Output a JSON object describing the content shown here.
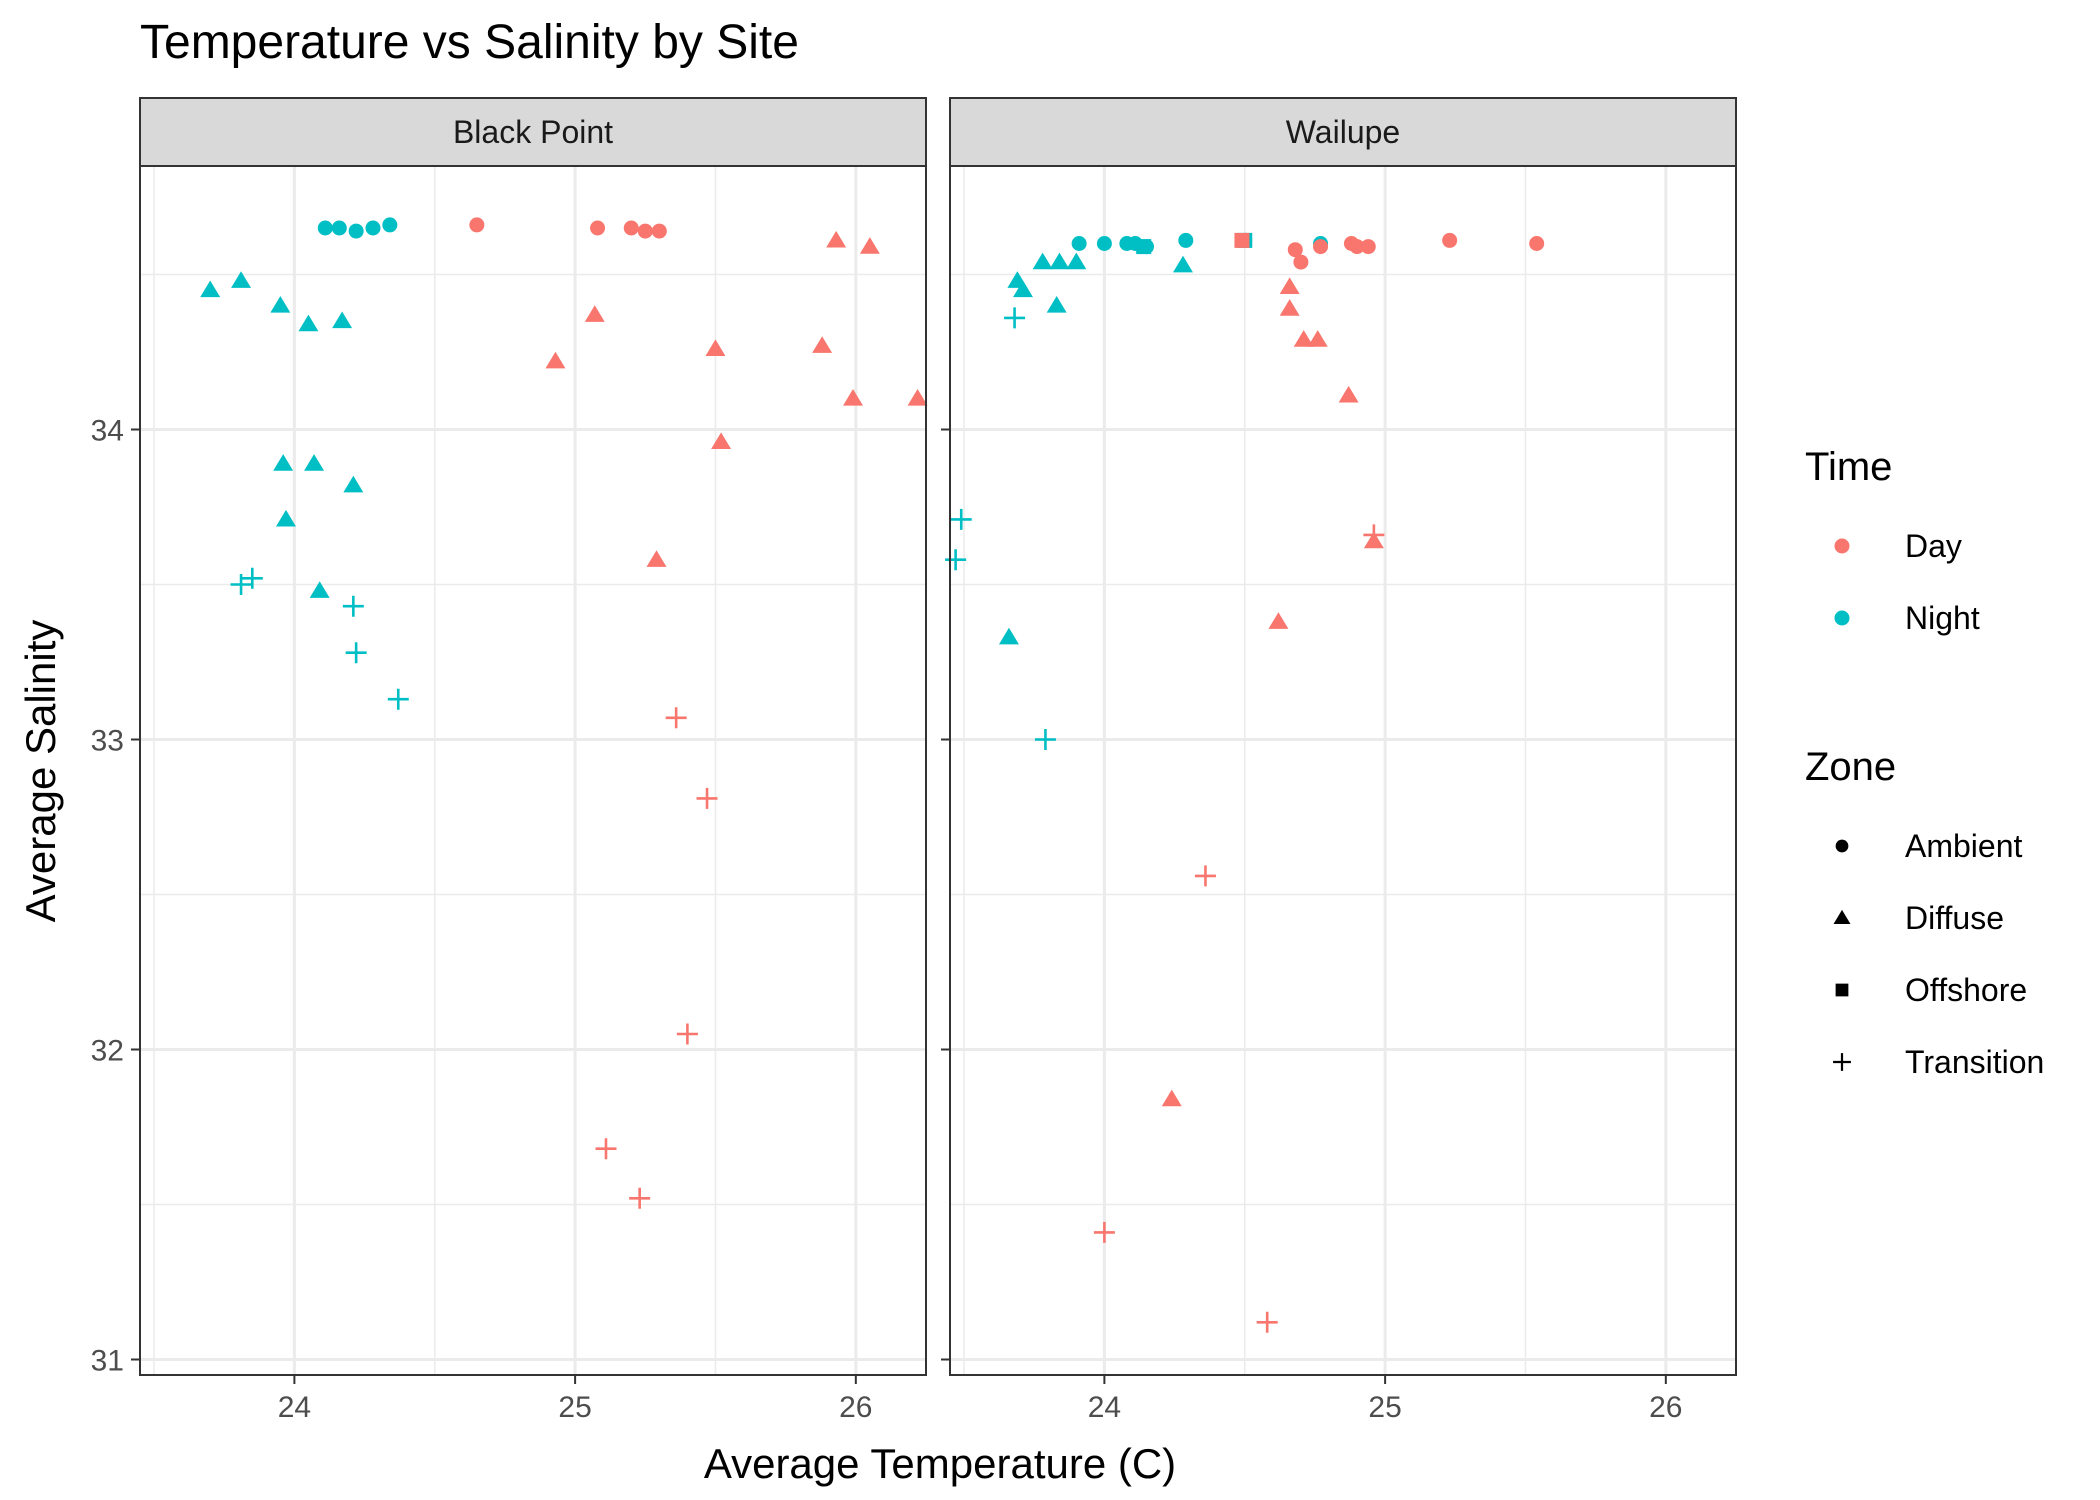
{
  "chart_data": {
    "type": "scatter",
    "title": "Temperature vs Salinity by Site",
    "xlabel": "Average Temperature (C)",
    "ylabel": "Average Salinity",
    "xlim": [
      23.45,
      26.25
    ],
    "ylim": [
      30.95,
      34.85
    ],
    "x_ticks": [
      24,
      25,
      26
    ],
    "y_ticks": [
      31,
      32,
      33,
      34
    ],
    "grid": true,
    "facets": [
      "Black Point",
      "Wailupe"
    ],
    "legend": {
      "placement": "right",
      "color_title": "Time",
      "shape_title": "Zone",
      "colors": {
        "Day": "#F8766D",
        "Night": "#00BFC4"
      },
      "shapes": {
        "Ambient": "circle",
        "Diffuse": "triangle",
        "Offshore": "square",
        "Transition": "plus"
      },
      "color_labels": [
        "Day",
        "Night"
      ],
      "shape_labels": [
        "Ambient",
        "Diffuse",
        "Offshore",
        "Transition"
      ]
    },
    "points": [
      {
        "site": "Black Point",
        "time": "Night",
        "zone": "Ambient",
        "x": 24.11,
        "y": 34.65
      },
      {
        "site": "Black Point",
        "time": "Night",
        "zone": "Ambient",
        "x": 24.16,
        "y": 34.65
      },
      {
        "site": "Black Point",
        "time": "Night",
        "zone": "Ambient",
        "x": 24.22,
        "y": 34.64
      },
      {
        "site": "Black Point",
        "time": "Night",
        "zone": "Ambient",
        "x": 24.28,
        "y": 34.65
      },
      {
        "site": "Black Point",
        "time": "Night",
        "zone": "Ambient",
        "x": 24.34,
        "y": 34.66
      },
      {
        "site": "Black Point",
        "time": "Day",
        "zone": "Ambient",
        "x": 24.65,
        "y": 34.66
      },
      {
        "site": "Black Point",
        "time": "Day",
        "zone": "Ambient",
        "x": 25.08,
        "y": 34.65
      },
      {
        "site": "Black Point",
        "time": "Day",
        "zone": "Ambient",
        "x": 25.2,
        "y": 34.65
      },
      {
        "site": "Black Point",
        "time": "Day",
        "zone": "Ambient",
        "x": 25.25,
        "y": 34.64
      },
      {
        "site": "Black Point",
        "time": "Day",
        "zone": "Ambient",
        "x": 25.3,
        "y": 34.64
      },
      {
        "site": "Black Point",
        "time": "Night",
        "zone": "Diffuse",
        "x": 23.7,
        "y": 34.45
      },
      {
        "site": "Black Point",
        "time": "Night",
        "zone": "Diffuse",
        "x": 23.81,
        "y": 34.48
      },
      {
        "site": "Black Point",
        "time": "Night",
        "zone": "Diffuse",
        "x": 23.95,
        "y": 34.4
      },
      {
        "site": "Black Point",
        "time": "Night",
        "zone": "Diffuse",
        "x": 24.05,
        "y": 34.34
      },
      {
        "site": "Black Point",
        "time": "Night",
        "zone": "Diffuse",
        "x": 24.17,
        "y": 34.35
      },
      {
        "site": "Black Point",
        "time": "Night",
        "zone": "Diffuse",
        "x": 23.96,
        "y": 33.89
      },
      {
        "site": "Black Point",
        "time": "Night",
        "zone": "Diffuse",
        "x": 24.07,
        "y": 33.89
      },
      {
        "site": "Black Point",
        "time": "Night",
        "zone": "Diffuse",
        "x": 24.21,
        "y": 33.82
      },
      {
        "site": "Black Point",
        "time": "Night",
        "zone": "Diffuse",
        "x": 23.97,
        "y": 33.71
      },
      {
        "site": "Black Point",
        "time": "Night",
        "zone": "Diffuse",
        "x": 24.09,
        "y": 33.48
      },
      {
        "site": "Black Point",
        "time": "Day",
        "zone": "Diffuse",
        "x": 24.93,
        "y": 34.22
      },
      {
        "site": "Black Point",
        "time": "Day",
        "zone": "Diffuse",
        "x": 25.07,
        "y": 34.37
      },
      {
        "site": "Black Point",
        "time": "Day",
        "zone": "Diffuse",
        "x": 25.5,
        "y": 34.26
      },
      {
        "site": "Black Point",
        "time": "Day",
        "zone": "Diffuse",
        "x": 25.52,
        "y": 33.96
      },
      {
        "site": "Black Point",
        "time": "Day",
        "zone": "Diffuse",
        "x": 25.29,
        "y": 33.58
      },
      {
        "site": "Black Point",
        "time": "Day",
        "zone": "Diffuse",
        "x": 25.88,
        "y": 34.27
      },
      {
        "site": "Black Point",
        "time": "Day",
        "zone": "Diffuse",
        "x": 25.93,
        "y": 34.61
      },
      {
        "site": "Black Point",
        "time": "Day",
        "zone": "Diffuse",
        "x": 26.05,
        "y": 34.59
      },
      {
        "site": "Black Point",
        "time": "Day",
        "zone": "Diffuse",
        "x": 25.99,
        "y": 34.1
      },
      {
        "site": "Black Point",
        "time": "Day",
        "zone": "Diffuse",
        "x": 26.22,
        "y": 34.1
      },
      {
        "site": "Black Point",
        "time": "Night",
        "zone": "Transition",
        "x": 23.81,
        "y": 33.5
      },
      {
        "site": "Black Point",
        "time": "Night",
        "zone": "Transition",
        "x": 23.85,
        "y": 33.52
      },
      {
        "site": "Black Point",
        "time": "Night",
        "zone": "Transition",
        "x": 24.21,
        "y": 33.43
      },
      {
        "site": "Black Point",
        "time": "Night",
        "zone": "Transition",
        "x": 24.22,
        "y": 33.28
      },
      {
        "site": "Black Point",
        "time": "Night",
        "zone": "Transition",
        "x": 24.37,
        "y": 33.13
      },
      {
        "site": "Black Point",
        "time": "Day",
        "zone": "Transition",
        "x": 25.36,
        "y": 33.07
      },
      {
        "site": "Black Point",
        "time": "Day",
        "zone": "Transition",
        "x": 25.47,
        "y": 32.81
      },
      {
        "site": "Black Point",
        "time": "Day",
        "zone": "Transition",
        "x": 25.4,
        "y": 32.05
      },
      {
        "site": "Black Point",
        "time": "Day",
        "zone": "Transition",
        "x": 25.11,
        "y": 31.68
      },
      {
        "site": "Black Point",
        "time": "Day",
        "zone": "Transition",
        "x": 25.23,
        "y": 31.52
      },
      {
        "site": "Wailupe",
        "time": "Night",
        "zone": "Ambient",
        "x": 23.91,
        "y": 34.6
      },
      {
        "site": "Wailupe",
        "time": "Night",
        "zone": "Ambient",
        "x": 24.0,
        "y": 34.6
      },
      {
        "site": "Wailupe",
        "time": "Night",
        "zone": "Ambient",
        "x": 24.08,
        "y": 34.6
      },
      {
        "site": "Wailupe",
        "time": "Night",
        "zone": "Ambient",
        "x": 24.11,
        "y": 34.6
      },
      {
        "site": "Wailupe",
        "time": "Night",
        "zone": "Ambient",
        "x": 24.15,
        "y": 34.59
      },
      {
        "site": "Wailupe",
        "time": "Night",
        "zone": "Ambient",
        "x": 24.29,
        "y": 34.61
      },
      {
        "site": "Wailupe",
        "time": "Night",
        "zone": "Ambient",
        "x": 24.5,
        "y": 34.61
      },
      {
        "site": "Wailupe",
        "time": "Night",
        "zone": "Ambient",
        "x": 24.77,
        "y": 34.6
      },
      {
        "site": "Wailupe",
        "time": "Day",
        "zone": "Ambient",
        "x": 24.68,
        "y": 34.58
      },
      {
        "site": "Wailupe",
        "time": "Day",
        "zone": "Ambient",
        "x": 24.7,
        "y": 34.54
      },
      {
        "site": "Wailupe",
        "time": "Day",
        "zone": "Ambient",
        "x": 24.77,
        "y": 34.59
      },
      {
        "site": "Wailupe",
        "time": "Day",
        "zone": "Ambient",
        "x": 24.88,
        "y": 34.6
      },
      {
        "site": "Wailupe",
        "time": "Day",
        "zone": "Ambient",
        "x": 24.9,
        "y": 34.59
      },
      {
        "site": "Wailupe",
        "time": "Day",
        "zone": "Ambient",
        "x": 24.94,
        "y": 34.59
      },
      {
        "site": "Wailupe",
        "time": "Day",
        "zone": "Ambient",
        "x": 25.23,
        "y": 34.61
      },
      {
        "site": "Wailupe",
        "time": "Day",
        "zone": "Ambient",
        "x": 25.54,
        "y": 34.6
      },
      {
        "site": "Wailupe",
        "time": "Night",
        "zone": "Offshore",
        "x": 24.14,
        "y": 34.59
      },
      {
        "site": "Wailupe",
        "time": "Night",
        "zone": "Offshore",
        "x": 24.5,
        "y": 34.61
      },
      {
        "site": "Wailupe",
        "time": "Day",
        "zone": "Offshore",
        "x": 24.49,
        "y": 34.61
      },
      {
        "site": "Wailupe",
        "time": "Night",
        "zone": "Diffuse",
        "x": 23.69,
        "y": 34.48
      },
      {
        "site": "Wailupe",
        "time": "Night",
        "zone": "Diffuse",
        "x": 23.71,
        "y": 34.45
      },
      {
        "site": "Wailupe",
        "time": "Night",
        "zone": "Diffuse",
        "x": 23.78,
        "y": 34.54
      },
      {
        "site": "Wailupe",
        "time": "Night",
        "zone": "Diffuse",
        "x": 23.84,
        "y": 34.54
      },
      {
        "site": "Wailupe",
        "time": "Night",
        "zone": "Diffuse",
        "x": 23.9,
        "y": 34.54
      },
      {
        "site": "Wailupe",
        "time": "Night",
        "zone": "Diffuse",
        "x": 23.83,
        "y": 34.4
      },
      {
        "site": "Wailupe",
        "time": "Night",
        "zone": "Diffuse",
        "x": 24.28,
        "y": 34.53
      },
      {
        "site": "Wailupe",
        "time": "Night",
        "zone": "Diffuse",
        "x": 23.66,
        "y": 33.33
      },
      {
        "site": "Wailupe",
        "time": "Day",
        "zone": "Diffuse",
        "x": 24.66,
        "y": 34.46
      },
      {
        "site": "Wailupe",
        "time": "Day",
        "zone": "Diffuse",
        "x": 24.66,
        "y": 34.39
      },
      {
        "site": "Wailupe",
        "time": "Day",
        "zone": "Diffuse",
        "x": 24.71,
        "y": 34.29
      },
      {
        "site": "Wailupe",
        "time": "Day",
        "zone": "Diffuse",
        "x": 24.76,
        "y": 34.29
      },
      {
        "site": "Wailupe",
        "time": "Day",
        "zone": "Diffuse",
        "x": 24.87,
        "y": 34.11
      },
      {
        "site": "Wailupe",
        "time": "Day",
        "zone": "Diffuse",
        "x": 24.96,
        "y": 33.64
      },
      {
        "site": "Wailupe",
        "time": "Day",
        "zone": "Diffuse",
        "x": 24.62,
        "y": 33.38
      },
      {
        "site": "Wailupe",
        "time": "Day",
        "zone": "Diffuse",
        "x": 24.24,
        "y": 31.84
      },
      {
        "site": "Wailupe",
        "time": "Night",
        "zone": "Transition",
        "x": 23.68,
        "y": 34.36
      },
      {
        "site": "Wailupe",
        "time": "Night",
        "zone": "Transition",
        "x": 23.49,
        "y": 33.71
      },
      {
        "site": "Wailupe",
        "time": "Night",
        "zone": "Transition",
        "x": 23.47,
        "y": 33.58
      },
      {
        "site": "Wailupe",
        "time": "Night",
        "zone": "Transition",
        "x": 23.79,
        "y": 33.0
      },
      {
        "site": "Wailupe",
        "time": "Day",
        "zone": "Transition",
        "x": 24.96,
        "y": 33.66
      },
      {
        "site": "Wailupe",
        "time": "Day",
        "zone": "Transition",
        "x": 24.36,
        "y": 32.56
      },
      {
        "site": "Wailupe",
        "time": "Day",
        "zone": "Transition",
        "x": 24.0,
        "y": 31.41
      },
      {
        "site": "Wailupe",
        "time": "Day",
        "zone": "Transition",
        "x": 24.58,
        "y": 31.12
      }
    ]
  }
}
